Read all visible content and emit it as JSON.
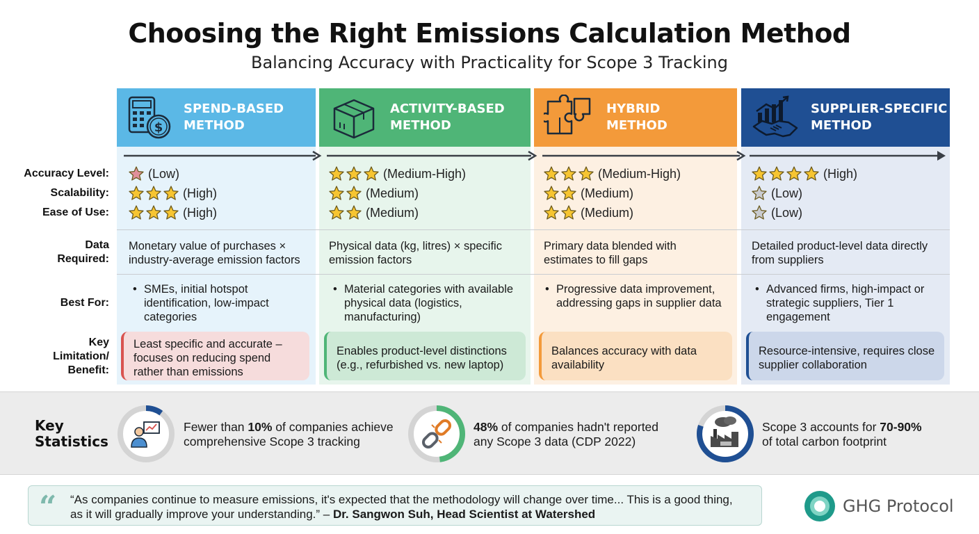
{
  "title": "Choosing the Right Emissions Calculation Method",
  "subtitle": "Balancing Accuracy with Practicality for Scope 3 Tracking",
  "row_labels": {
    "accuracy": "Accuracy Level:",
    "scalability": "Scalability:",
    "ease": "Ease of Use:",
    "data_1": "Data",
    "data_2": "Required:",
    "best_for": "Best For:",
    "limit_1": "Key",
    "limit_2": "Limitation/",
    "limit_3": "Benefit:"
  },
  "methods": [
    {
      "title_1": "Spend-Based",
      "title_2": "Method",
      "icon": "calculator-dollar-icon",
      "color": "#5bb8e6",
      "accuracy": {
        "stars": 1,
        "text": "(Low)"
      },
      "scalability": {
        "stars": 3,
        "text": "(High)"
      },
      "ease": {
        "stars": 3,
        "text": "(High)"
      },
      "data_1": "Monetary value of purchases ×",
      "data_2": "industry-average emission factors",
      "best_1": "SMEs, initial hotspot",
      "best_2": "identification, low-impact",
      "best_3": "categories",
      "limit_1": "Least specific and accurate –",
      "limit_2": "focuses on reducing spend",
      "limit_3": "rather than emissions"
    },
    {
      "title_1": "Activity-Based",
      "title_2": "Method",
      "icon": "package-box-icon",
      "color": "#4fb577",
      "accuracy": {
        "stars": 3,
        "text": "(Medium-High)"
      },
      "scalability": {
        "stars": 2,
        "text": "(Medium)"
      },
      "ease": {
        "stars": 2,
        "text": "(Medium)"
      },
      "data_1": "Physical data (kg, litres) × specific",
      "data_2": "emission factors",
      "best_1": "Material categories with available",
      "best_2": "physical data (logistics,",
      "best_3": "manufacturing)",
      "limit_1": "Enables product-level distinctions",
      "limit_2": "(e.g., refurbished vs. new laptop)",
      "limit_3": ""
    },
    {
      "title_1": "Hybrid",
      "title_2": "Method",
      "icon": "puzzle-pieces-icon",
      "color": "#f39a3a",
      "accuracy": {
        "stars": 3,
        "text": "(Medium-High)"
      },
      "scalability": {
        "stars": 2,
        "text": "(Medium)"
      },
      "ease": {
        "stars": 2,
        "text": "(Medium)"
      },
      "data_1": "Primary data blended with",
      "data_2": "estimates to fill gaps",
      "best_1": "Progressive data improvement,",
      "best_2": "addressing gaps in supplier data",
      "best_3": "",
      "limit_1": "Balances accuracy with data",
      "limit_2": "availability",
      "limit_3": ""
    },
    {
      "title_1": "Supplier-Specific",
      "title_2": "Method",
      "icon": "handshake-chart-icon",
      "color": "#1f4f93",
      "accuracy": {
        "stars": 4,
        "text": "(High)"
      },
      "scalability": {
        "stars": 1,
        "text": "(Low)"
      },
      "ease": {
        "stars": 1,
        "text": "(Low)"
      },
      "data_1": "Detailed product-level data directly",
      "data_2": "from suppliers",
      "best_1": "Advanced firms, high-impact or",
      "best_2": "strategic suppliers, Tier 1",
      "best_3": "engagement",
      "limit_1": "Resource-intensive, requires close",
      "limit_2": "supplier collaboration",
      "limit_3": ""
    }
  ],
  "stats": {
    "label_1": "Key",
    "label_2": "Statistics",
    "items": [
      {
        "icon": "person-chart-icon",
        "ring_percent": 10,
        "color": "#1f4f93",
        "pre": "Fewer than ",
        "bold": "10%",
        "post": " of companies achieve",
        "line_2": "comprehensive Scope 3 tracking"
      },
      {
        "icon": "broken-chain-icon",
        "ring_percent": 48,
        "color": "#4fb577",
        "pre": "",
        "bold": "48%",
        "post": " of companies hadn't reported",
        "line_2": "any Scope 3 data (CDP 2022)"
      },
      {
        "icon": "factory-cloud-icon",
        "ring_percent": 80,
        "color": "#1f4f93",
        "pre": "Scope 3 accounts for ",
        "bold": "70-90%",
        "post": "",
        "line_2": "of total carbon footprint"
      }
    ]
  },
  "quote": {
    "mark": "“",
    "text_1": "“As companies continue to measure emissions, it's expected that the methodology will change over time... This is a good thing,",
    "text_2": "as it will gradually improve your understanding.” – ",
    "author": "Dr. Sangwon Suh, Head Scientist at Watershed"
  },
  "brand": {
    "name": "GHG Protocol",
    "icon": "ghg-logo-icon",
    "color": "#1e9a8a"
  }
}
